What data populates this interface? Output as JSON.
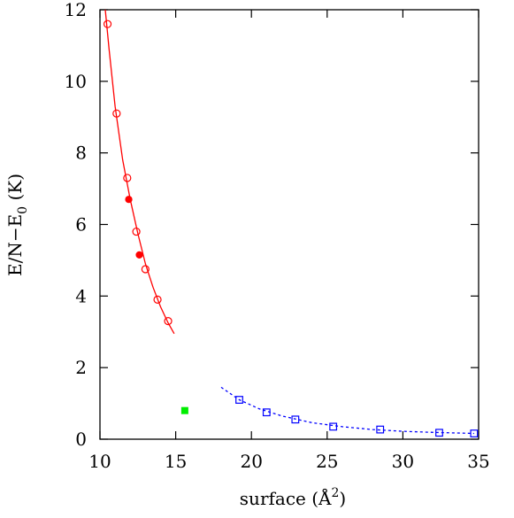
{
  "chart_data": {
    "type": "scatter",
    "xlabel": "surface (Å",
    "xlabel_sup": "2",
    "xlabel_end": ")",
    "ylabel": "E/N−E",
    "ylabel_sub": "0",
    "ylabel_end": " (K)",
    "xlim": [
      10,
      35
    ],
    "ylim": [
      0,
      12
    ],
    "xticks": [
      10,
      15,
      20,
      25,
      30,
      35
    ],
    "yticks": [
      0,
      2,
      4,
      6,
      8,
      10,
      12
    ],
    "grid": false,
    "series": [
      {
        "marker": "open-circle",
        "color": "#ff0000",
        "x": [
          10.5,
          11.1,
          11.8,
          12.4,
          13.0,
          13.8,
          14.5
        ],
        "y": [
          11.6,
          9.1,
          7.3,
          5.8,
          4.75,
          3.9,
          3.3
        ]
      },
      {
        "marker": "filled-circle",
        "color": "#ff0000",
        "x": [
          11.9,
          12.6
        ],
        "y": [
          6.7,
          5.15
        ]
      },
      {
        "marker": "filled-square",
        "color": "#00ee00",
        "x": [
          15.6
        ],
        "y": [
          0.8
        ]
      },
      {
        "marker": "open-square",
        "color": "#0000ff",
        "x": [
          19.2,
          21.0,
          22.9,
          25.4,
          28.5,
          32.4,
          34.7
        ],
        "y": [
          1.1,
          0.75,
          0.55,
          0.35,
          0.27,
          0.18,
          0.16
        ]
      },
      {
        "marker": "line",
        "style": "solid",
        "color": "#ff0000",
        "x": [
          10.35,
          10.6,
          11.0,
          11.5,
          12.0,
          12.5,
          13.0,
          13.5,
          14.0,
          14.5,
          14.9
        ],
        "y": [
          12.0,
          10.9,
          9.3,
          7.8,
          6.7,
          5.75,
          4.9,
          4.25,
          3.7,
          3.25,
          2.95
        ]
      },
      {
        "marker": "line",
        "style": "dotted",
        "color": "#0000ff",
        "x": [
          18.0,
          19.2,
          20.5,
          22.0,
          24.0,
          26.0,
          28.0,
          30.0,
          32.0,
          34.7
        ],
        "y": [
          1.45,
          1.1,
          0.85,
          0.65,
          0.46,
          0.35,
          0.27,
          0.22,
          0.19,
          0.16
        ]
      }
    ]
  }
}
